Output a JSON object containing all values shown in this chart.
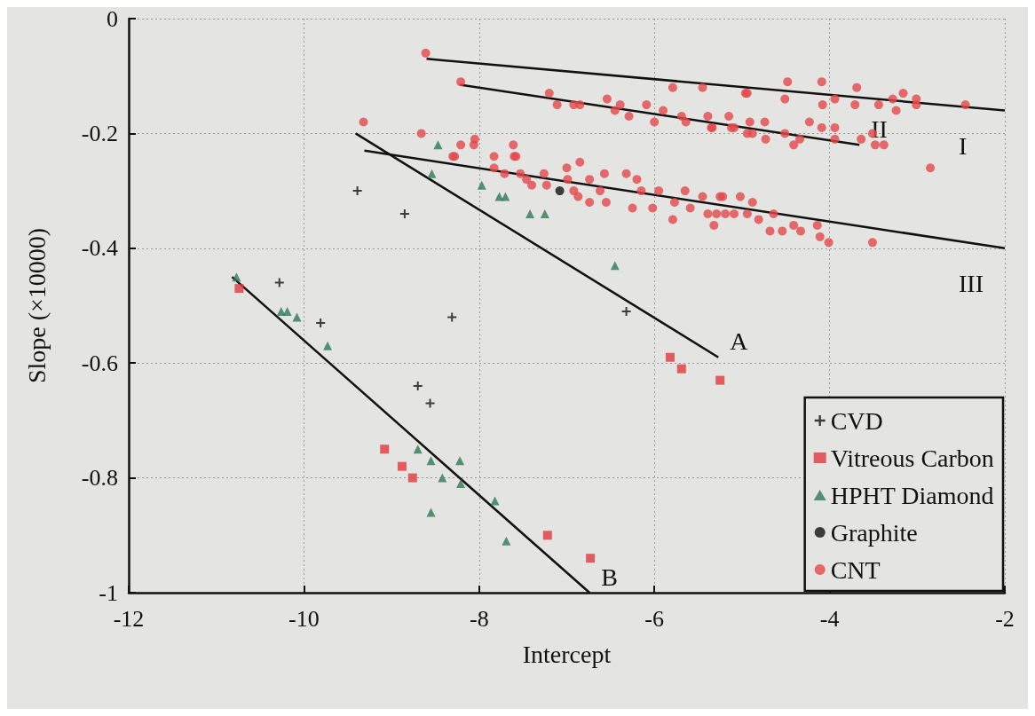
{
  "chart_data": {
    "type": "scatter",
    "xlabel": "Intercept",
    "ylabel": "Slope (×10000)",
    "xlim": [
      -12,
      -2
    ],
    "xticks": [
      -12,
      -10,
      -8,
      -6,
      -4,
      -2
    ],
    "ylim": [
      -1,
      0
    ],
    "yticks": [
      -1,
      -0.8,
      -0.6,
      -0.4,
      -0.2,
      0
    ],
    "grid": true,
    "legend": "bottom right",
    "series": [
      {
        "name": "CVD",
        "marker": "cross",
        "color": "#111111",
        "x": [
          -9.39,
          -8.85,
          -10.28,
          -9.81,
          -8.31,
          -6.32,
          -8.7,
          -8.56
        ],
        "values": [
          -0.3,
          -0.34,
          -0.46,
          -0.53,
          -0.52,
          -0.51,
          -0.64,
          -0.67
        ]
      },
      {
        "name": "Vitreous Carbon",
        "marker": "square",
        "color": "#e0393e",
        "x": [
          -10.74,
          -9.08,
          -8.88,
          -8.76,
          -7.22,
          -6.73,
          -5.82,
          -5.69,
          -5.25
        ],
        "values": [
          -0.47,
          -0.75,
          -0.78,
          -0.8,
          -0.9,
          -0.94,
          -0.59,
          -0.61,
          -0.63
        ]
      },
      {
        "name": "HPHT Diamond",
        "marker": "triangle",
        "color": "#2e7a55",
        "x": [
          -10.77,
          -10.26,
          -10.19,
          -10.08,
          -9.73,
          -8.47,
          -8.54,
          -7.97,
          -7.77,
          -7.7,
          -7.42,
          -7.25,
          -6.45,
          -8.7,
          -8.55,
          -8.22,
          -8.42,
          -8.21,
          -7.82,
          -8.55,
          -7.69
        ],
        "values": [
          -0.45,
          -0.51,
          -0.51,
          -0.52,
          -0.57,
          -0.22,
          -0.27,
          -0.29,
          -0.31,
          -0.31,
          -0.34,
          -0.34,
          -0.43,
          -0.75,
          -0.77,
          -0.77,
          -0.8,
          -0.81,
          -0.84,
          -0.86,
          -0.91
        ]
      },
      {
        "name": "Graphite",
        "marker": "circle",
        "color": "#111111",
        "x": [
          -7.08
        ],
        "values": [
          -0.3
        ]
      },
      {
        "name": "CNT",
        "marker": "circle",
        "color": "#e4474b",
        "x": [
          -8.61,
          -9.32,
          -8.21,
          -5.79,
          -5.45,
          -4.96,
          -4.48,
          -4.09,
          -4.94,
          -4.51,
          -4.08,
          -3.94,
          -3.69,
          -3.71,
          -3.44,
          -3.28,
          -3.24,
          -3.16,
          -3.01,
          -3.01,
          -2.45,
          -2.85,
          -7.2,
          -7.11,
          -6.92,
          -6.85,
          -6.54,
          -6.45,
          -6.39,
          -6.29,
          -6.09,
          -6.0,
          -5.9,
          -5.69,
          -5.64,
          -5.39,
          -5.34,
          -5.15,
          -5.09,
          -4.94,
          -5.35,
          -5.12,
          -4.91,
          -4.88,
          -4.74,
          -4.73,
          -4.51,
          -4.41,
          -4.34,
          -4.23,
          -4.09,
          -3.94,
          -3.94,
          -3.64,
          -3.51,
          -3.48,
          -3.38,
          -8.66,
          -8.3,
          -8.21,
          -8.05,
          -7.83,
          -7.61,
          -7.6,
          -7.83,
          -7.71,
          -7.53,
          -7.46,
          -7.4,
          -7.26,
          -7.23,
          -7.0,
          -6.85,
          -6.99,
          -6.92,
          -6.87,
          -6.74,
          -6.74,
          -6.62,
          -6.57,
          -6.55,
          -6.32,
          -6.2,
          -6.25,
          -6.15,
          -6.02,
          -5.95,
          -5.77,
          -5.79,
          -5.65,
          -5.59,
          -5.45,
          -5.39,
          -5.25,
          -5.19,
          -5.02,
          -4.94,
          -5.32,
          -5.22,
          -4.88,
          -5.29,
          -5.09,
          -4.81,
          -4.64,
          -4.68,
          -4.54,
          -4.41,
          -4.33,
          -4.14,
          -4.11,
          -4.01,
          -3.51,
          -8.28,
          -8.06,
          -7.58
        ],
        "values": [
          -0.06,
          -0.18,
          -0.11,
          -0.12,
          -0.12,
          -0.13,
          -0.11,
          -0.11,
          -0.13,
          -0.14,
          -0.15,
          -0.14,
          -0.12,
          -0.15,
          -0.15,
          -0.14,
          -0.16,
          -0.13,
          -0.14,
          -0.15,
          -0.15,
          -0.26,
          -0.13,
          -0.15,
          -0.15,
          -0.15,
          -0.14,
          -0.16,
          -0.15,
          -0.17,
          -0.15,
          -0.18,
          -0.16,
          -0.17,
          -0.18,
          -0.17,
          -0.19,
          -0.17,
          -0.19,
          -0.2,
          -0.19,
          -0.19,
          -0.18,
          -0.2,
          -0.18,
          -0.21,
          -0.2,
          -0.22,
          -0.21,
          -0.18,
          -0.19,
          -0.19,
          -0.21,
          -0.21,
          -0.2,
          -0.22,
          -0.22,
          -0.2,
          -0.24,
          -0.22,
          -0.21,
          -0.24,
          -0.22,
          -0.24,
          -0.26,
          -0.27,
          -0.27,
          -0.28,
          -0.29,
          -0.27,
          -0.29,
          -0.26,
          -0.25,
          -0.28,
          -0.3,
          -0.31,
          -0.28,
          -0.32,
          -0.3,
          -0.27,
          -0.32,
          -0.27,
          -0.28,
          -0.33,
          -0.3,
          -0.33,
          -0.3,
          -0.32,
          -0.35,
          -0.3,
          -0.33,
          -0.31,
          -0.34,
          -0.31,
          -0.34,
          -0.31,
          -0.34,
          -0.36,
          -0.31,
          -0.32,
          -0.34,
          -0.34,
          -0.35,
          -0.34,
          -0.37,
          -0.37,
          -0.36,
          -0.37,
          -0.36,
          -0.38,
          -0.39,
          -0.39,
          -0.24,
          -0.22,
          -0.24
        ]
      },
      {
        "name": "I",
        "type": "line",
        "marker": "none",
        "color": "#111111",
        "x": [
          -8.6,
          -2.0
        ],
        "values": [
          -0.07,
          -0.16
        ]
      },
      {
        "name": "II",
        "type": "line",
        "marker": "none",
        "color": "#111111",
        "x": [
          -8.22,
          -3.66
        ],
        "values": [
          -0.115,
          -0.22
        ]
      },
      {
        "name": "III",
        "type": "line",
        "marker": "none",
        "color": "#111111",
        "x": [
          -9.31,
          -2.0
        ],
        "values": [
          -0.23,
          -0.4
        ]
      },
      {
        "name": "A",
        "type": "line",
        "marker": "none",
        "color": "#111111",
        "x": [
          -9.41,
          -5.27
        ],
        "values": [
          -0.2,
          -0.59
        ]
      },
      {
        "name": "B",
        "type": "line",
        "marker": "none",
        "color": "#111111",
        "x": [
          -10.82,
          -6.74
        ],
        "values": [
          -0.45,
          -1.0
        ]
      }
    ]
  }
}
